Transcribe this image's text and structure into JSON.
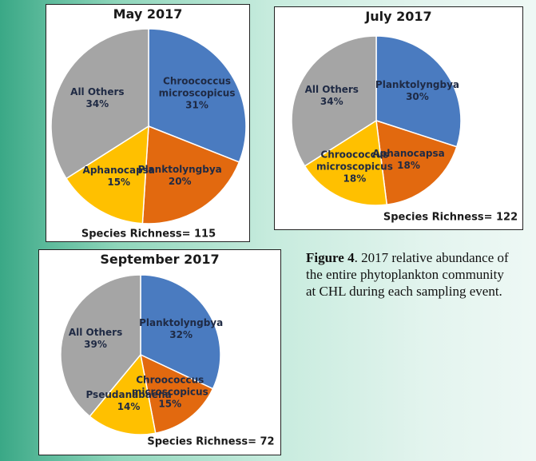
{
  "chart_data": [
    {
      "type": "pie",
      "title": "May 2017",
      "categories": [
        "Chroococcus microscopicus",
        "Planktolyngbya",
        "Aphanocapsa",
        "All Others"
      ],
      "values": [
        31,
        20,
        15,
        34
      ],
      "value_labels": [
        "31%",
        "20%",
        "15%",
        "34%"
      ],
      "colors": [
        "#4a7bc0",
        "#e2690f",
        "#ffc000",
        "#a5a5a5"
      ],
      "annotation": "Species Richness= 115"
    },
    {
      "type": "pie",
      "title": "July 2017",
      "categories": [
        "Planktolyngbya",
        "Aphanocapsa",
        "Chroococcus microscopicus",
        "All Others"
      ],
      "values": [
        30,
        18,
        18,
        34
      ],
      "value_labels": [
        "30%",
        "18%",
        "18%",
        "34%"
      ],
      "colors": [
        "#4a7bc0",
        "#e2690f",
        "#ffc000",
        "#a5a5a5"
      ],
      "annotation": "Species Richness= 122"
    },
    {
      "type": "pie",
      "title": "September 2017",
      "categories": [
        "Planktolyngbya",
        "Chroococcus microscopicus",
        "Pseudanabaena",
        "All Others"
      ],
      "values": [
        32,
        15,
        14,
        39
      ],
      "value_labels": [
        "32%",
        "15%",
        "14%",
        "39%"
      ],
      "colors": [
        "#4a7bc0",
        "#e2690f",
        "#ffc000",
        "#a5a5a5"
      ],
      "annotation": "Species Richness= 72"
    }
  ],
  "caption": {
    "label": "Figure 4",
    "text": ". 2017 relative abundance of the entire phytoplankton community at CHL during each sampling event."
  }
}
